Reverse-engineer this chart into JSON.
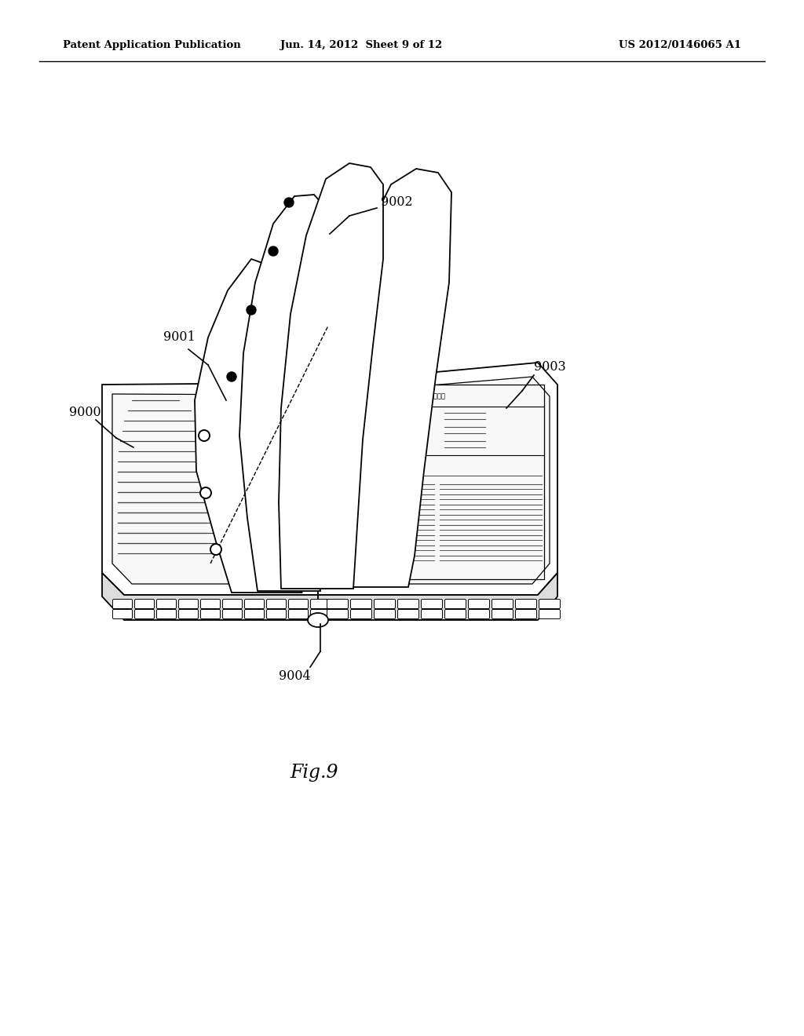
{
  "header_left": "Patent Application Publication",
  "header_mid": "Jun. 14, 2012  Sheet 9 of 12",
  "header_right": "US 2012/0146065 A1",
  "fig_label": "Fig.9",
  "bg_color": "#ffffff",
  "line_color": "#000000",
  "label_9000": "9000",
  "label_9001": "9001",
  "label_9002": "9002",
  "label_9003": "9003",
  "label_9004": "9004"
}
